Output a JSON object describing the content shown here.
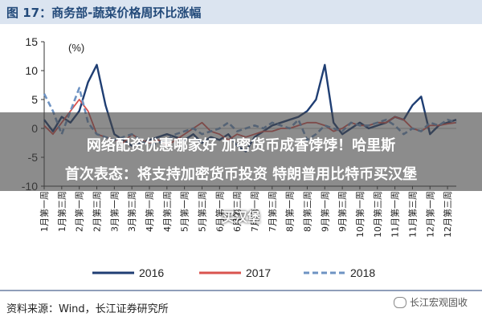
{
  "title": "图 17：商务部-蔬菜价格周环比涨幅",
  "source": "资料来源：Wind，长江证券研究所",
  "watermark": "长江宏观固收",
  "overlay": {
    "line1": "网络配资优惠哪家好 加密货币成香饽饽！哈里斯",
    "line2": "首次表态：将支持加密货币投资 特朗普用比特币买汉堡",
    "line3": "买汉堡"
  },
  "chart_data": {
    "type": "line",
    "title": "",
    "ylabel": "(%)",
    "ylim": [
      -10,
      15
    ],
    "yticks": [
      -10,
      -5,
      0,
      5,
      10,
      15
    ],
    "x_tick_labels": [
      "1月第一周",
      "1月第三周",
      "2月第一周",
      "2月第三周",
      "3月第一周",
      "3月第三周",
      "4月第一周",
      "4月第三周",
      "5月第一周",
      "5月第三周",
      "6月第一周",
      "6月第三周",
      "7月第一周",
      "7月第三周",
      "8月第一周",
      "8月第三周",
      "9月第一周",
      "9月第三周",
      "10月第一周",
      "10月第三周",
      "11月第一周",
      "11月第三周",
      "12月第一周",
      "12月第三周"
    ],
    "n_points": 48,
    "colors": {
      "2016": "#1f3e73",
      "2017": "#d9534f",
      "2018": "#6e93c3"
    },
    "series": [
      {
        "name": "2016",
        "values": [
          1.5,
          -0.5,
          2,
          1,
          3,
          8,
          11,
          4,
          -1,
          -2,
          -3,
          -2.5,
          -2,
          -1.5,
          -1,
          -1.5,
          -2,
          -1,
          -2.5,
          -1.5,
          -2,
          -1,
          -3,
          -4,
          -1.5,
          -0.5,
          0.5,
          1,
          1.5,
          2,
          3,
          5,
          11,
          1,
          -1,
          0,
          1,
          0,
          0.5,
          1,
          2,
          1.5,
          4,
          5.5,
          -1,
          0.5,
          1,
          1.5
        ]
      },
      {
        "name": "2017",
        "values": [
          0.5,
          -1,
          1,
          3,
          5,
          3,
          -1,
          -1.5,
          -2,
          -2.5,
          -1,
          -2,
          -2.5,
          -2,
          -3,
          -2,
          -1,
          0,
          1,
          -0.5,
          -1,
          -2,
          -1,
          -1.5,
          -1,
          -0.5,
          -0.5,
          0,
          0,
          0.5,
          1,
          1,
          0.5,
          -0.5,
          0,
          1,
          0.5,
          0.5,
          1,
          1,
          2,
          1.5,
          0,
          -0.5,
          0.5,
          0.5,
          0.8,
          1
        ]
      },
      {
        "name": "2018",
        "values": [
          6,
          3,
          -1,
          3,
          7,
          1,
          -1,
          -1.5,
          -2,
          -1.5,
          -1,
          -2,
          -3,
          -2.5,
          -2,
          -1,
          -0.5,
          0,
          -1,
          -0.5,
          0,
          1,
          -0.5,
          0,
          0.5,
          0,
          1,
          0.5,
          0,
          1.5,
          -2,
          -1,
          0.5,
          0,
          -0.5,
          1,
          0.5,
          0.5,
          1,
          1.5,
          0.5,
          -1,
          0,
          -0.5,
          1,
          0.5,
          1.5,
          1
        ]
      }
    ]
  }
}
